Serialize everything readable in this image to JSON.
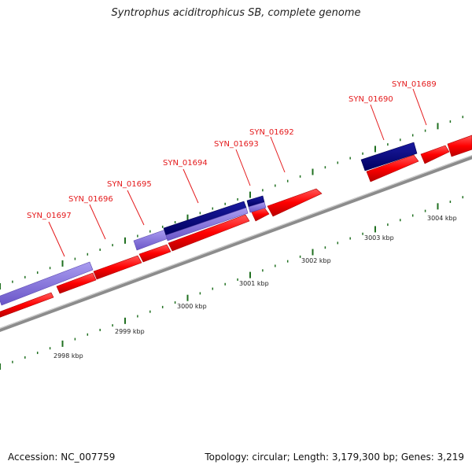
{
  "title": "Syntrophus aciditrophicus SB, complete genome",
  "footer": {
    "accession": "Accession: NC_007759",
    "summary": "Topology: circular; Length: 3,179,300 bp; Genes: 3,219"
  },
  "colors": {
    "label_red": "#e41a1c",
    "cds_red": "#ff0000",
    "cds_dark_blue": "#000080",
    "cds_light_blue": "#8470d8",
    "backbone": "#8c8c8c",
    "tick_green": "#207020"
  },
  "scale_labels": [
    "2998 kbp",
    "2999 kbp",
    "3000 kbp",
    "3001 kbp",
    "3002 kbp",
    "3003 kbp",
    "3004 kbp"
  ],
  "gene_labels": [
    "SYN_01697",
    "SYN_01696",
    "SYN_01695",
    "SYN_01694",
    "SYN_01693",
    "SYN_01692",
    "SYN_01690",
    "SYN_01689"
  ]
}
